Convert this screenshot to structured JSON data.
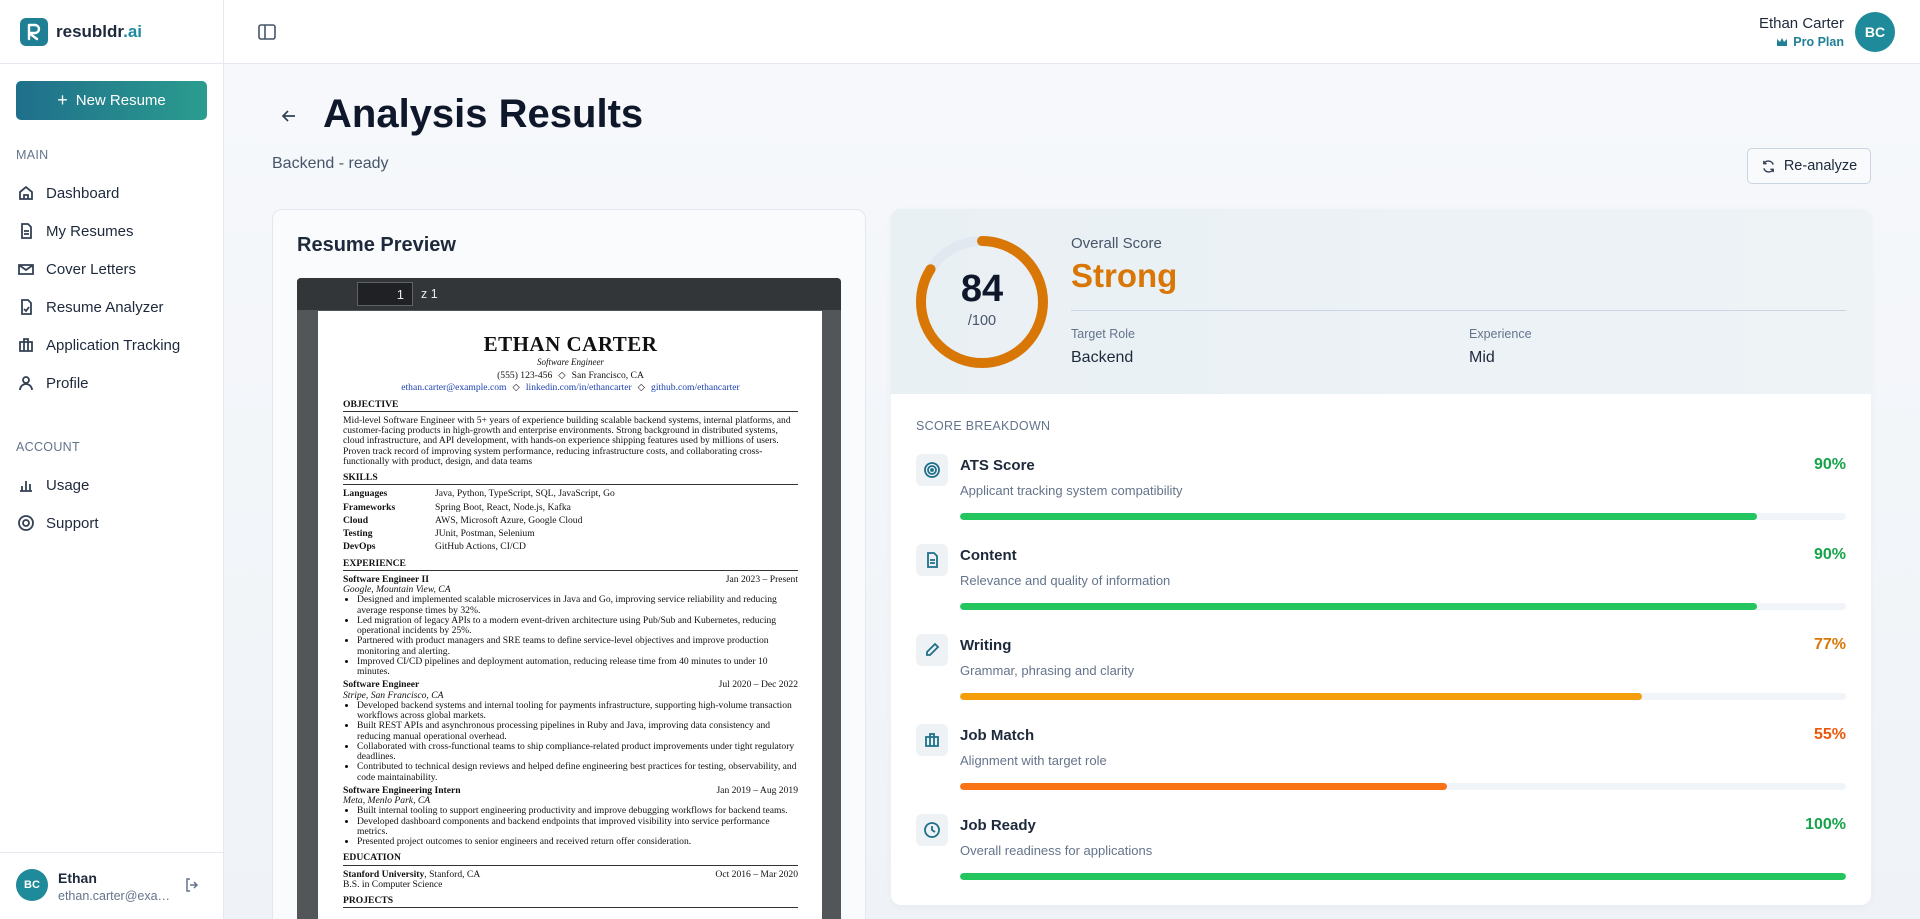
{
  "brand": {
    "name": "resubldr",
    "suffix": ".ai"
  },
  "sidebar": {
    "new_button": "New Resume",
    "sections": [
      {
        "label": "MAIN",
        "items": [
          "Dashboard",
          "My Resumes",
          "Cover Letters",
          "Resume Analyzer",
          "Application Tracking",
          "Profile"
        ]
      },
      {
        "label": "ACCOUNT",
        "items": [
          "Usage",
          "Support"
        ]
      }
    ],
    "user": {
      "initials": "BC",
      "name": "Ethan",
      "email": "ethan.carter@exa…"
    }
  },
  "header": {
    "user_name": "Ethan Carter",
    "plan": "Pro Plan",
    "initials": "BC"
  },
  "page": {
    "title": "Analysis Results",
    "subtitle": "Backend - ready",
    "reanalyze": "Re-analyze"
  },
  "preview": {
    "title": "Resume Preview",
    "page_input": "1",
    "page_count": "z 1",
    "resume": {
      "name": "ETHAN CARTER",
      "role": "Software Engineer",
      "contact": {
        "phone": "(555) 123-456",
        "location": "San Francisco, CA",
        "separator": "◇",
        "email": "ethan.carter@example.com",
        "linkedin": "linkedin.com/in/ethancarter",
        "github": "github.com/ethancarter"
      },
      "objective": {
        "heading": "OBJECTIVE",
        "text": "Mid-level Software Engineer with 5+ years of experience building scalable backend systems, internal platforms, and customer-facing products in high-growth and enterprise environments. Strong background in distributed systems, cloud infrastructure, and API development, with hands-on experience shipping features used by millions of users. Proven track record of improving system performance, reducing infrastructure costs, and collaborating cross-functionally with product, design, and data teams"
      },
      "skills": {
        "heading": "SKILLS",
        "rows": [
          {
            "label": "Languages",
            "value": "Java, Python, TypeScript, SQL, JavaScript, Go"
          },
          {
            "label": "Frameworks",
            "value": "Spring Boot, React, Node.js, Kafka"
          },
          {
            "label": "Cloud",
            "value": "AWS, Microsoft Azure, Google Cloud"
          },
          {
            "label": "Testing",
            "value": "JUnit, Postman, Selenium"
          },
          {
            "label": "DevOps",
            "value": "GitHub Actions, CI/CD"
          }
        ]
      },
      "experience": {
        "heading": "EXPERIENCE",
        "jobs": [
          {
            "title": "Software Engineer II",
            "dates": "Jan 2023 – Present",
            "company": "Google, Mountain View, CA",
            "bullets": [
              "Designed and implemented scalable microservices in Java and Go, improving service reliability and reducing average response times by 32%.",
              "Led migration of legacy APIs to a modern event-driven architecture using Pub/Sub and Kubernetes, reducing operational incidents by 25%.",
              "Partnered with product managers and SRE teams to define service-level objectives and improve production monitoring and alerting.",
              "Improved CI/CD pipelines and deployment automation, reducing release time from 40 minutes to under 10 minutes."
            ]
          },
          {
            "title": "Software Engineer",
            "dates": "Jul 2020 – Dec 2022",
            "company": "Stripe, San Francisco, CA",
            "bullets": [
              "Developed backend systems and internal tooling for payments infrastructure, supporting high-volume transaction workflows across global markets.",
              "Built REST APIs and asynchronous processing pipelines in Ruby and Java, improving data consistency and reducing manual operational overhead.",
              "Collaborated with cross-functional teams to ship compliance-related product improvements under tight regulatory deadlines.",
              "Contributed to technical design reviews and helped define engineering best practices for testing, observability, and code maintainability."
            ]
          },
          {
            "title": "Software Engineering Intern",
            "dates": "Jan 2019 – Aug 2019",
            "company": "Meta, Menlo Park, CA",
            "bullets": [
              "Built internal tooling to support engineering productivity and improve debugging workflows for backend teams.",
              "Developed dashboard components and backend endpoints that improved visibility into service performance metrics.",
              "Presented project outcomes to senior engineers and received return offer consideration."
            ]
          }
        ]
      },
      "education": {
        "heading": "EDUCATION",
        "entries": [
          {
            "school": "Stanford University",
            "school_rest": ", Stanford, CA",
            "dates": "Oct 2016 – Mar 2020",
            "degree": "B.S. in Computer Science"
          }
        ]
      },
      "projects": {
        "heading": "PROJECTS"
      }
    }
  },
  "analysis": {
    "score": {
      "value": 84,
      "max": 100,
      "max_label": "/100",
      "color": "#d97706"
    },
    "overall_label": "Overall Score",
    "rating": "Strong",
    "target_role_label": "Target Role",
    "target_role": "Backend",
    "experience_label": "Experience",
    "experience": "Mid",
    "breakdown_title": "SCORE BREAKDOWN",
    "items": [
      {
        "name": "ATS Score",
        "description": "Applicant tracking system compatibility",
        "value": 90,
        "label": "90%",
        "color": "#22c55e",
        "text_color": "#16a34a"
      },
      {
        "name": "Content",
        "description": "Relevance and quality of information",
        "value": 90,
        "label": "90%",
        "color": "#22c55e",
        "text_color": "#16a34a"
      },
      {
        "name": "Writing",
        "description": "Grammar, phrasing and clarity",
        "value": 77,
        "label": "77%",
        "color": "#f59e0b",
        "text_color": "#d97706"
      },
      {
        "name": "Job Match",
        "description": "Alignment with target role",
        "value": 55,
        "label": "55%",
        "color": "#f97316",
        "text_color": "#ea580c"
      },
      {
        "name": "Job Ready",
        "description": "Overall readiness for applications",
        "value": 100,
        "label": "100%",
        "color": "#22c55e",
        "text_color": "#16a34a"
      }
    ]
  }
}
